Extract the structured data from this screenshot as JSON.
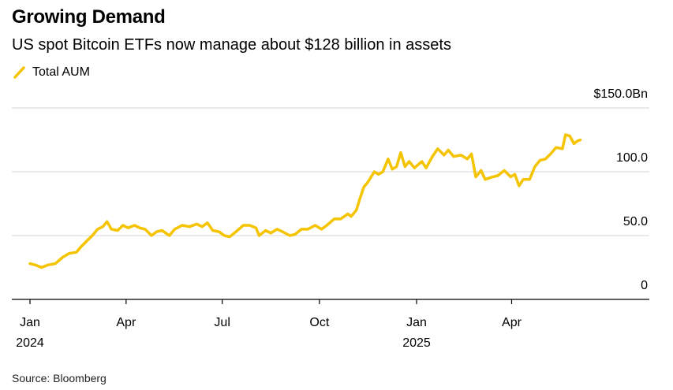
{
  "header": {
    "title": "Growing Demand",
    "subtitle": "US spot Bitcoin ETFs now manage about $128 billion in assets"
  },
  "legend": {
    "label": "Total AUM",
    "color": "#f5c400",
    "icon": "slash-line-icon"
  },
  "footer": {
    "source": "Source: Bloomberg"
  },
  "chart_data": {
    "type": "line",
    "title": "Growing Demand",
    "subtitle": "US spot Bitcoin ETFs now manage about $128 billion in assets",
    "ylim": [
      0,
      150
    ],
    "y_ticks": [
      0,
      50,
      100,
      150
    ],
    "y_tick_labels": [
      "0",
      "50.0",
      "100.0",
      "$150.0Bn"
    ],
    "y_axis_side": "right",
    "grid": "horizontal",
    "legend_position": "top-left",
    "x_ticks": [
      {
        "date": "2024-01-01",
        "label": "Jan",
        "sublabel": "2024"
      },
      {
        "date": "2024-04-01",
        "label": "Apr",
        "sublabel": ""
      },
      {
        "date": "2024-07-01",
        "label": "Jul",
        "sublabel": ""
      },
      {
        "date": "2024-10-01",
        "label": "Oct",
        "sublabel": ""
      },
      {
        "date": "2025-01-01",
        "label": "Jan",
        "sublabel": "2025"
      },
      {
        "date": "2025-04-01",
        "label": "Apr",
        "sublabel": ""
      }
    ],
    "series": [
      {
        "name": "Total AUM",
        "color": "#f5c400",
        "points": [
          [
            "2024-01-01",
            28
          ],
          [
            "2024-01-06",
            27
          ],
          [
            "2024-01-12",
            25
          ],
          [
            "2024-01-18",
            27
          ],
          [
            "2024-01-25",
            28
          ],
          [
            "2024-02-01",
            33
          ],
          [
            "2024-02-07",
            36
          ],
          [
            "2024-02-14",
            37
          ],
          [
            "2024-02-18",
            41
          ],
          [
            "2024-02-24",
            46
          ],
          [
            "2024-02-29",
            50
          ],
          [
            "2024-03-05",
            55
          ],
          [
            "2024-03-10",
            57
          ],
          [
            "2024-03-14",
            61
          ],
          [
            "2024-03-18",
            55
          ],
          [
            "2024-03-24",
            54
          ],
          [
            "2024-03-29",
            58
          ],
          [
            "2024-04-03",
            56
          ],
          [
            "2024-04-09",
            58
          ],
          [
            "2024-04-14",
            56
          ],
          [
            "2024-04-19",
            55
          ],
          [
            "2024-04-25",
            50
          ],
          [
            "2024-04-30",
            53
          ],
          [
            "2024-05-05",
            54
          ],
          [
            "2024-05-12",
            50
          ],
          [
            "2024-05-17",
            55
          ],
          [
            "2024-05-24",
            58
          ],
          [
            "2024-05-31",
            57
          ],
          [
            "2024-06-07",
            59
          ],
          [
            "2024-06-12",
            57
          ],
          [
            "2024-06-17",
            60
          ],
          [
            "2024-06-22",
            54
          ],
          [
            "2024-06-28",
            53
          ],
          [
            "2024-07-03",
            50
          ],
          [
            "2024-07-08",
            49
          ],
          [
            "2024-07-14",
            53
          ],
          [
            "2024-07-21",
            58
          ],
          [
            "2024-07-27",
            58
          ],
          [
            "2024-08-02",
            56
          ],
          [
            "2024-08-05",
            50
          ],
          [
            "2024-08-11",
            54
          ],
          [
            "2024-08-16",
            52
          ],
          [
            "2024-08-22",
            55
          ],
          [
            "2024-08-27",
            53
          ],
          [
            "2024-09-03",
            50
          ],
          [
            "2024-09-08",
            51
          ],
          [
            "2024-09-14",
            55
          ],
          [
            "2024-09-20",
            55
          ],
          [
            "2024-09-27",
            58
          ],
          [
            "2024-10-03",
            55
          ],
          [
            "2024-10-08",
            58
          ],
          [
            "2024-10-15",
            63
          ],
          [
            "2024-10-21",
            63
          ],
          [
            "2024-10-28",
            67
          ],
          [
            "2024-10-31",
            65
          ],
          [
            "2024-11-05",
            70
          ],
          [
            "2024-11-08",
            78
          ],
          [
            "2024-11-12",
            88
          ],
          [
            "2024-11-16",
            92
          ],
          [
            "2024-11-22",
            100
          ],
          [
            "2024-11-26",
            98
          ],
          [
            "2024-11-30",
            100
          ],
          [
            "2024-12-05",
            110
          ],
          [
            "2024-12-09",
            102
          ],
          [
            "2024-12-13",
            104
          ],
          [
            "2024-12-17",
            115
          ],
          [
            "2024-12-21",
            104
          ],
          [
            "2024-12-25",
            108
          ],
          [
            "2024-12-30",
            103
          ],
          [
            "2025-01-06",
            108
          ],
          [
            "2025-01-10",
            103
          ],
          [
            "2025-01-16",
            112
          ],
          [
            "2025-01-21",
            118
          ],
          [
            "2025-01-27",
            113
          ],
          [
            "2025-01-31",
            117
          ],
          [
            "2025-02-05",
            112
          ],
          [
            "2025-02-12",
            113
          ],
          [
            "2025-02-18",
            110
          ],
          [
            "2025-02-22",
            114
          ],
          [
            "2025-02-26",
            96
          ],
          [
            "2025-03-03",
            101
          ],
          [
            "2025-03-07",
            94
          ],
          [
            "2025-03-14",
            96
          ],
          [
            "2025-03-19",
            97
          ],
          [
            "2025-03-25",
            101
          ],
          [
            "2025-03-31",
            96
          ],
          [
            "2025-04-04",
            98
          ],
          [
            "2025-04-08",
            89
          ],
          [
            "2025-04-12",
            94
          ],
          [
            "2025-04-18",
            94
          ],
          [
            "2025-04-23",
            104
          ],
          [
            "2025-04-28",
            109
          ],
          [
            "2025-05-03",
            110
          ],
          [
            "2025-05-08",
            114
          ],
          [
            "2025-05-13",
            119
          ],
          [
            "2025-05-19",
            118
          ],
          [
            "2025-05-22",
            129
          ],
          [
            "2025-05-26",
            128
          ],
          [
            "2025-05-30",
            122
          ],
          [
            "2025-06-02",
            124
          ],
          [
            "2025-06-05",
            125
          ]
        ]
      }
    ]
  }
}
